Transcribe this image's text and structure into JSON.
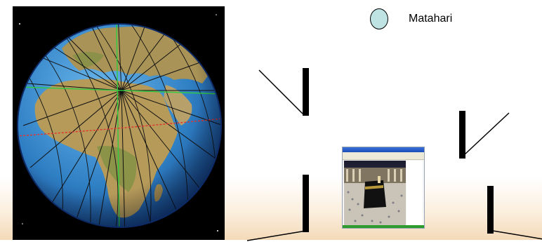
{
  "legend": {
    "sun_label": "Matahari",
    "sun_color": "#bfe3e3"
  },
  "globe": {
    "ocean_color": "#2f7fc4",
    "land_color": "#b59a5a",
    "meridian_color": "#111111",
    "reference_line_color": "#2ecc40",
    "equator_color": "#e2332f"
  },
  "icons": [
    "globe-image",
    "sun-marker",
    "kaaba-photo"
  ]
}
